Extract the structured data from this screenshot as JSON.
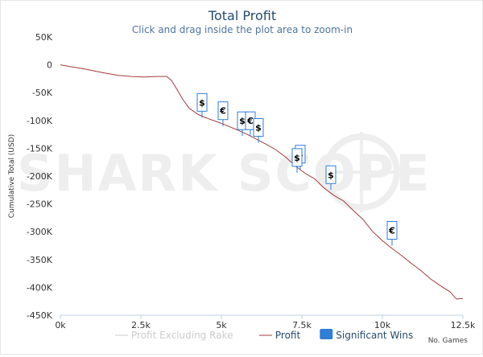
{
  "chart_data": {
    "type": "line",
    "title": "Total Profit",
    "subtitle": "Click and drag inside the plot area to zoom-in",
    "ylabel": "Cumulative Total (USD)",
    "x_ticks": [
      "0k",
      "2.5k",
      "5k",
      "7.5k",
      "10k",
      "12.5k"
    ],
    "x_tick_values": [
      0,
      2500,
      5000,
      7500,
      10000,
      12500
    ],
    "y_ticks": [
      "50K",
      "0",
      "-50K",
      "-100K",
      "-150K",
      "-200K",
      "-250K",
      "-300K",
      "-350K",
      "-400K",
      "-450K"
    ],
    "y_tick_values": [
      50000,
      0,
      -50000,
      -100000,
      -150000,
      -200000,
      -250000,
      -300000,
      -350000,
      -400000,
      -450000
    ],
    "xlim": [
      0,
      12500
    ],
    "ylim": [
      -450000,
      50000
    ],
    "series": [
      {
        "name": "Profit",
        "color": "#a33b3b",
        "x": [
          0,
          300,
          800,
          1300,
          1800,
          2200,
          2600,
          3000,
          3300,
          3450,
          3600,
          3800,
          4000,
          4300,
          4600,
          4900,
          5200,
          5500,
          5800,
          6100,
          6400,
          6700,
          7000,
          7300,
          7600,
          7900,
          8200,
          8500,
          8800,
          9100,
          9400,
          9700,
          10000,
          10300,
          10600,
          10900,
          11200,
          11500,
          11800,
          12100,
          12300,
          12500
        ],
        "y": [
          0,
          -3000,
          -8000,
          -14000,
          -19000,
          -21000,
          -22000,
          -21000,
          -21000,
          -28000,
          -42000,
          -62000,
          -78000,
          -90000,
          -97000,
          -103000,
          -110000,
          -117000,
          -125000,
          -134000,
          -143000,
          -153000,
          -166000,
          -182000,
          -195000,
          -205000,
          -222000,
          -235000,
          -245000,
          -262000,
          -278000,
          -300000,
          -316000,
          -330000,
          -343000,
          -357000,
          -370000,
          -385000,
          -397000,
          -408000,
          -421000,
          -420000
        ]
      },
      {
        "name": "Profit Excluding Rake",
        "color": "#cccccc",
        "x": [],
        "y": []
      }
    ],
    "significant_wins": [
      {
        "x": 4400,
        "y": -95000,
        "symbol": "$"
      },
      {
        "x": 5050,
        "y": -110000,
        "symbol": "€"
      },
      {
        "x": 5650,
        "y": -128000,
        "symbol": "$"
      },
      {
        "x": 5900,
        "y": -128000,
        "symbol": "€"
      },
      {
        "x": 6150,
        "y": -140000,
        "symbol": "$"
      },
      {
        "x": 7450,
        "y": -188000,
        "symbol": "$"
      },
      {
        "x": 7350,
        "y": -194000,
        "symbol": "$"
      },
      {
        "x": 8400,
        "y": -225000,
        "symbol": "$"
      },
      {
        "x": 10300,
        "y": -325000,
        "symbol": "€"
      }
    ],
    "legend": {
      "position": "bottom",
      "items": [
        {
          "label": "Profit Excluding Rake",
          "color": "#cccccc",
          "kind": "line",
          "muted": true
        },
        {
          "label": "Profit",
          "color": "#a33b3b",
          "kind": "line",
          "muted": false
        },
        {
          "label": "Significant Wins",
          "color": "#2f7ed8",
          "kind": "box",
          "muted": false
        }
      ]
    },
    "x_note": "No. Games",
    "watermark": "SHARK SCOPE",
    "grid": false
  }
}
